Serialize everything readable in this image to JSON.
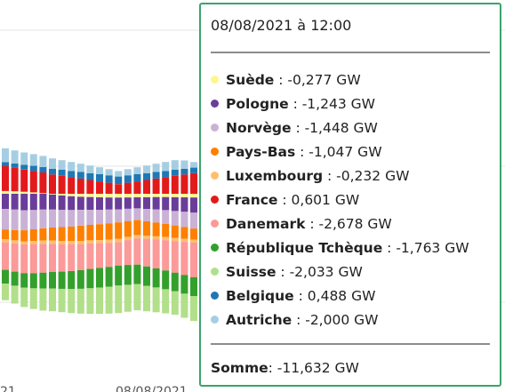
{
  "chart_data": {
    "type": "bar",
    "stacked": true,
    "x_tick_labels": [
      "21",
      "08/08/2021"
    ],
    "series": [
      {
        "name": "Suède",
        "color": "#fff68f",
        "values": [
          0.2,
          0.18,
          0.15,
          0.1,
          0.05,
          -0.05,
          -0.12,
          -0.18,
          -0.22,
          -0.24,
          -0.26,
          -0.27,
          -0.28,
          -0.27,
          -0.26,
          -0.25,
          -0.24,
          -0.24,
          -0.25,
          -0.26,
          -0.27,
          -0.28,
          -0.29,
          -0.3,
          -0.31,
          -0.32,
          -0.3,
          -0.28,
          -0.26,
          -0.25,
          -0.24,
          -0.23,
          -0.23,
          -0.24,
          -0.25,
          -0.26,
          -0.27,
          -0.28,
          -0.28,
          -0.27,
          -0.26
        ]
      },
      {
        "name": "Pologne",
        "color": "#6a3d9a",
        "values": [
          -1.1,
          -1.15,
          -1.2,
          -1.18,
          -1.15,
          -1.1,
          -1.05,
          -1.0,
          -0.95,
          -0.92,
          -0.9,
          -0.88,
          -0.85,
          -0.82,
          -0.8,
          -0.85,
          -0.9,
          -0.95,
          -1.0,
          -1.05,
          -1.1,
          -1.12,
          -1.15,
          -1.18,
          -1.2,
          -1.22,
          -1.24,
          -1.24,
          -1.22,
          -1.2,
          -1.18,
          -1.2,
          -1.22,
          -1.24,
          -1.25,
          -1.26,
          -1.25,
          -1.24,
          -1.23,
          -1.22,
          -1.2
        ]
      },
      {
        "name": "Norvège",
        "color": "#cab2d6",
        "values": [
          -1.5,
          -1.48,
          -1.45,
          -1.4,
          -1.35,
          -1.3,
          -1.25,
          -1.2,
          -1.15,
          -1.1,
          -1.05,
          -1.0,
          -0.95,
          -0.9,
          -0.85,
          -0.9,
          -0.95,
          -1.0,
          -1.05,
          -1.1,
          -1.15,
          -1.2,
          -1.25,
          -1.3,
          -1.35,
          -1.4,
          -1.42,
          -1.44,
          -1.45,
          -1.44,
          -1.43,
          -1.44,
          -1.45,
          -1.46,
          -1.47,
          -1.48,
          -1.47,
          -1.46,
          -1.45,
          -1.44,
          -1.43
        ]
      },
      {
        "name": "Pays-Bas",
        "color": "#ff7f00",
        "values": [
          -0.7,
          -0.75,
          -0.8,
          -0.85,
          -0.9,
          -0.95,
          -1.0,
          -1.05,
          -1.1,
          -1.12,
          -1.15,
          -1.18,
          -1.2,
          -1.15,
          -1.1,
          -1.05,
          -1.0,
          -0.95,
          -0.9,
          -0.85,
          -0.8,
          -0.78,
          -0.76,
          -0.75,
          -0.78,
          -0.82,
          -0.86,
          -0.9,
          -0.94,
          -0.98,
          -1.0,
          -1.02,
          -1.04,
          -1.05,
          -1.06,
          -1.05,
          -1.04,
          -1.03,
          -1.02,
          -1.01,
          -1.0
        ]
      },
      {
        "name": "Luxembourg",
        "color": "#fdbf6f",
        "values": [
          -0.22,
          -0.22,
          -0.22,
          -0.23,
          -0.23,
          -0.23,
          -0.23,
          -0.23,
          -0.23,
          -0.23,
          -0.23,
          -0.23,
          -0.23,
          -0.23,
          -0.23,
          -0.23,
          -0.23,
          -0.23,
          -0.23,
          -0.23,
          -0.23,
          -0.23,
          -0.23,
          -0.23,
          -0.23,
          -0.23,
          -0.23,
          -0.23,
          -0.23,
          -0.23,
          -0.23,
          -0.23,
          -0.23,
          -0.23,
          -0.23,
          -0.23,
          -0.23,
          -0.23,
          -0.23,
          -0.23,
          -0.23
        ]
      },
      {
        "name": "France",
        "color": "#e31a1c",
        "values": [
          1.8,
          1.7,
          1.6,
          1.55,
          1.5,
          1.4,
          1.3,
          1.2,
          1.1,
          1.0,
          0.9,
          0.8,
          0.7,
          0.8,
          0.9,
          1.0,
          1.1,
          1.2,
          1.3,
          1.4,
          1.5,
          1.55,
          1.6,
          1.5,
          1.4,
          1.3,
          1.2,
          1.1,
          1.0,
          0.95,
          0.9,
          0.85,
          0.8,
          0.75,
          0.7,
          0.65,
          0.62,
          0.6,
          0.61,
          0.6,
          0.6
        ]
      },
      {
        "name": "Danemark",
        "color": "#fb9a99",
        "values": [
          -2.0,
          -2.05,
          -2.1,
          -2.1,
          -2.1,
          -2.05,
          -2.0,
          -1.95,
          -1.9,
          -1.85,
          -1.8,
          -1.75,
          -1.7,
          -1.8,
          -1.9,
          -2.0,
          -2.1,
          -2.2,
          -2.3,
          -2.4,
          -2.5,
          -2.55,
          -2.6,
          -2.6,
          -2.6,
          -2.6,
          -2.6,
          -2.62,
          -2.64,
          -2.66,
          -2.68,
          -2.68,
          -2.68,
          -2.68,
          -2.68,
          -2.68,
          -2.68,
          -2.68,
          -2.68,
          -2.68,
          -2.68
        ]
      },
      {
        "name": "République Tchèque",
        "color": "#33a02c",
        "values": [
          -1.0,
          -1.02,
          -1.05,
          -1.1,
          -1.15,
          -1.2,
          -1.25,
          -1.3,
          -1.35,
          -1.4,
          -1.42,
          -1.44,
          -1.45,
          -1.44,
          -1.42,
          -1.4,
          -1.38,
          -1.36,
          -1.35,
          -1.36,
          -1.38,
          -1.4,
          -1.45,
          -1.5,
          -1.55,
          -1.6,
          -1.65,
          -1.7,
          -1.72,
          -1.74,
          -1.76,
          -1.76,
          -1.76,
          -1.76,
          -1.76,
          -1.76,
          -1.76,
          -1.76,
          -1.76,
          -1.76,
          -1.76
        ]
      },
      {
        "name": "Suisse",
        "color": "#b2df8a",
        "values": [
          -1.2,
          -1.3,
          -1.4,
          -1.5,
          -1.6,
          -1.65,
          -1.7,
          -1.75,
          -1.8,
          -1.85,
          -1.9,
          -1.95,
          -2.0,
          -1.95,
          -1.9,
          -1.85,
          -1.8,
          -1.75,
          -1.7,
          -1.75,
          -1.8,
          -1.85,
          -1.9,
          -1.95,
          -2.0,
          -2.02,
          -2.03,
          -2.03,
          -2.03,
          -2.03,
          -2.03,
          -2.03,
          -2.03,
          -2.03,
          -2.03,
          -2.03,
          -2.03,
          -2.03,
          -2.03,
          -2.03,
          -2.03
        ]
      },
      {
        "name": "Belgique",
        "color": "#1f78b4",
        "values": [
          0.3,
          0.32,
          0.35,
          0.38,
          0.4,
          0.42,
          0.44,
          0.46,
          0.48,
          0.5,
          0.52,
          0.54,
          0.55,
          0.54,
          0.52,
          0.5,
          0.48,
          0.46,
          0.44,
          0.42,
          0.4,
          0.42,
          0.44,
          0.46,
          0.48,
          0.49,
          0.49,
          0.49,
          0.49,
          0.49,
          0.49,
          0.49,
          0.49,
          0.49,
          0.49,
          0.49,
          0.49,
          0.49,
          0.49,
          0.49,
          0.49
        ]
      },
      {
        "name": "Autriche",
        "color": "#a6cee3",
        "values": [
          1.0,
          0.95,
          0.9,
          0.85,
          0.8,
          0.75,
          0.7,
          0.65,
          0.6,
          0.55,
          0.5,
          0.45,
          0.4,
          0.45,
          0.5,
          0.55,
          0.6,
          0.65,
          0.7,
          0.6,
          0.4,
          0.2,
          0.0,
          -0.5,
          -1.0,
          -1.5,
          -1.8,
          -2.0,
          -2.0,
          -2.0,
          -2.0,
          -2.0,
          -2.0,
          -2.0,
          -2.0,
          -2.0,
          -2.0,
          -2.0,
          -2.0,
          -2.0,
          -2.0
        ]
      }
    ]
  },
  "tooltip": {
    "title": "08/08/2021 à 12:00",
    "rows": [
      {
        "name": "Suède",
        "value": ": -0,277 GW",
        "color": "#fff68f"
      },
      {
        "name": "Pologne",
        "value": ": -1,243 GW",
        "color": "#6a3d9a"
      },
      {
        "name": "Norvège",
        "value": ": -1,448 GW",
        "color": "#cab2d6"
      },
      {
        "name": "Pays-Bas",
        "value": ": -1,047 GW",
        "color": "#ff7f00"
      },
      {
        "name": "Luxembourg",
        "value": ": -0,232 GW",
        "color": "#fdbf6f"
      },
      {
        "name": "France",
        "value": ": 0,601 GW",
        "color": "#e31a1c"
      },
      {
        "name": "Danemark",
        "value": ": -2,678 GW",
        "color": "#fb9a99"
      },
      {
        "name": "République Tchèque",
        "value": ": -1,763 GW",
        "color": "#33a02c"
      },
      {
        "name": "Suisse",
        "value": ": -2,033 GW",
        "color": "#b2df8a"
      },
      {
        "name": "Belgique",
        "value": ": 0,488 GW",
        "color": "#1f78b4"
      },
      {
        "name": "Autriche",
        "value": ": -2,000 GW",
        "color": "#a6cee3"
      }
    ],
    "sum_label": "Somme",
    "sum_value": ": -11,632 GW"
  }
}
